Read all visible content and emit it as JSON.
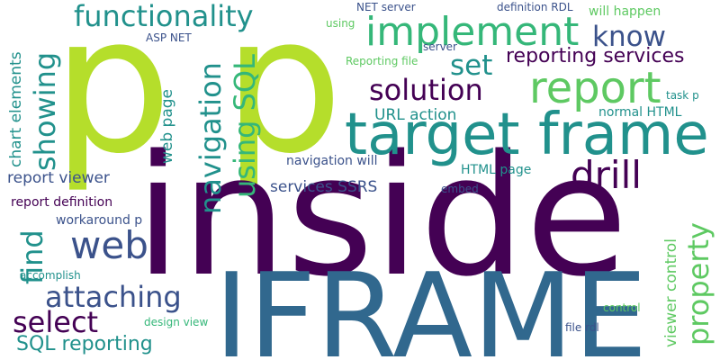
{
  "cloud": {
    "background": "#ffffff",
    "palette": {
      "dark_purple": "#440154",
      "indigo": "#3b528b",
      "blue": "#31688e",
      "teal": "#21918c",
      "green": "#35b779",
      "light_green": "#5ec962",
      "lime": "#b5de2b"
    },
    "words": {
      "p_left": "p",
      "p_right": "p",
      "inside": "inside",
      "iframe": "IFRAME",
      "target_frame": "target frame",
      "implement": "implement",
      "functionality": "functionality",
      "report": "report",
      "know": "know",
      "set": "set",
      "reporting_services": "reporting services",
      "solution": "solution",
      "drill": "drill",
      "showing": "showing",
      "navigation": "navigation",
      "using_sql": "using SQL",
      "web": "web",
      "find": "find",
      "attaching": "attaching",
      "select": "select",
      "sql_reporting": "SQL reporting",
      "property": "property",
      "viewer_control": "viewer control",
      "chart_elements": "chart elements",
      "web_page": "web page",
      "report_viewer": "report viewer",
      "report_definition": "report definition",
      "workaround_p": "workaround p",
      "accomplish": "accomplish",
      "services_ssrs": "services SSRS",
      "navigation_will": "navigation will",
      "html_page": "HTML page",
      "embed": "embed",
      "url_action": "URL action",
      "normal_html": "normal HTML",
      "task_p": "task p",
      "asp_net": "ASP NET",
      "net_server": "NET server",
      "definition_rdl": "definition RDL",
      "will_happen": "will happen",
      "using": "using",
      "server": "server",
      "reporting_file": "Reporting file",
      "design_view": "design view",
      "control": "control",
      "file_rdl": "file rdl"
    }
  }
}
